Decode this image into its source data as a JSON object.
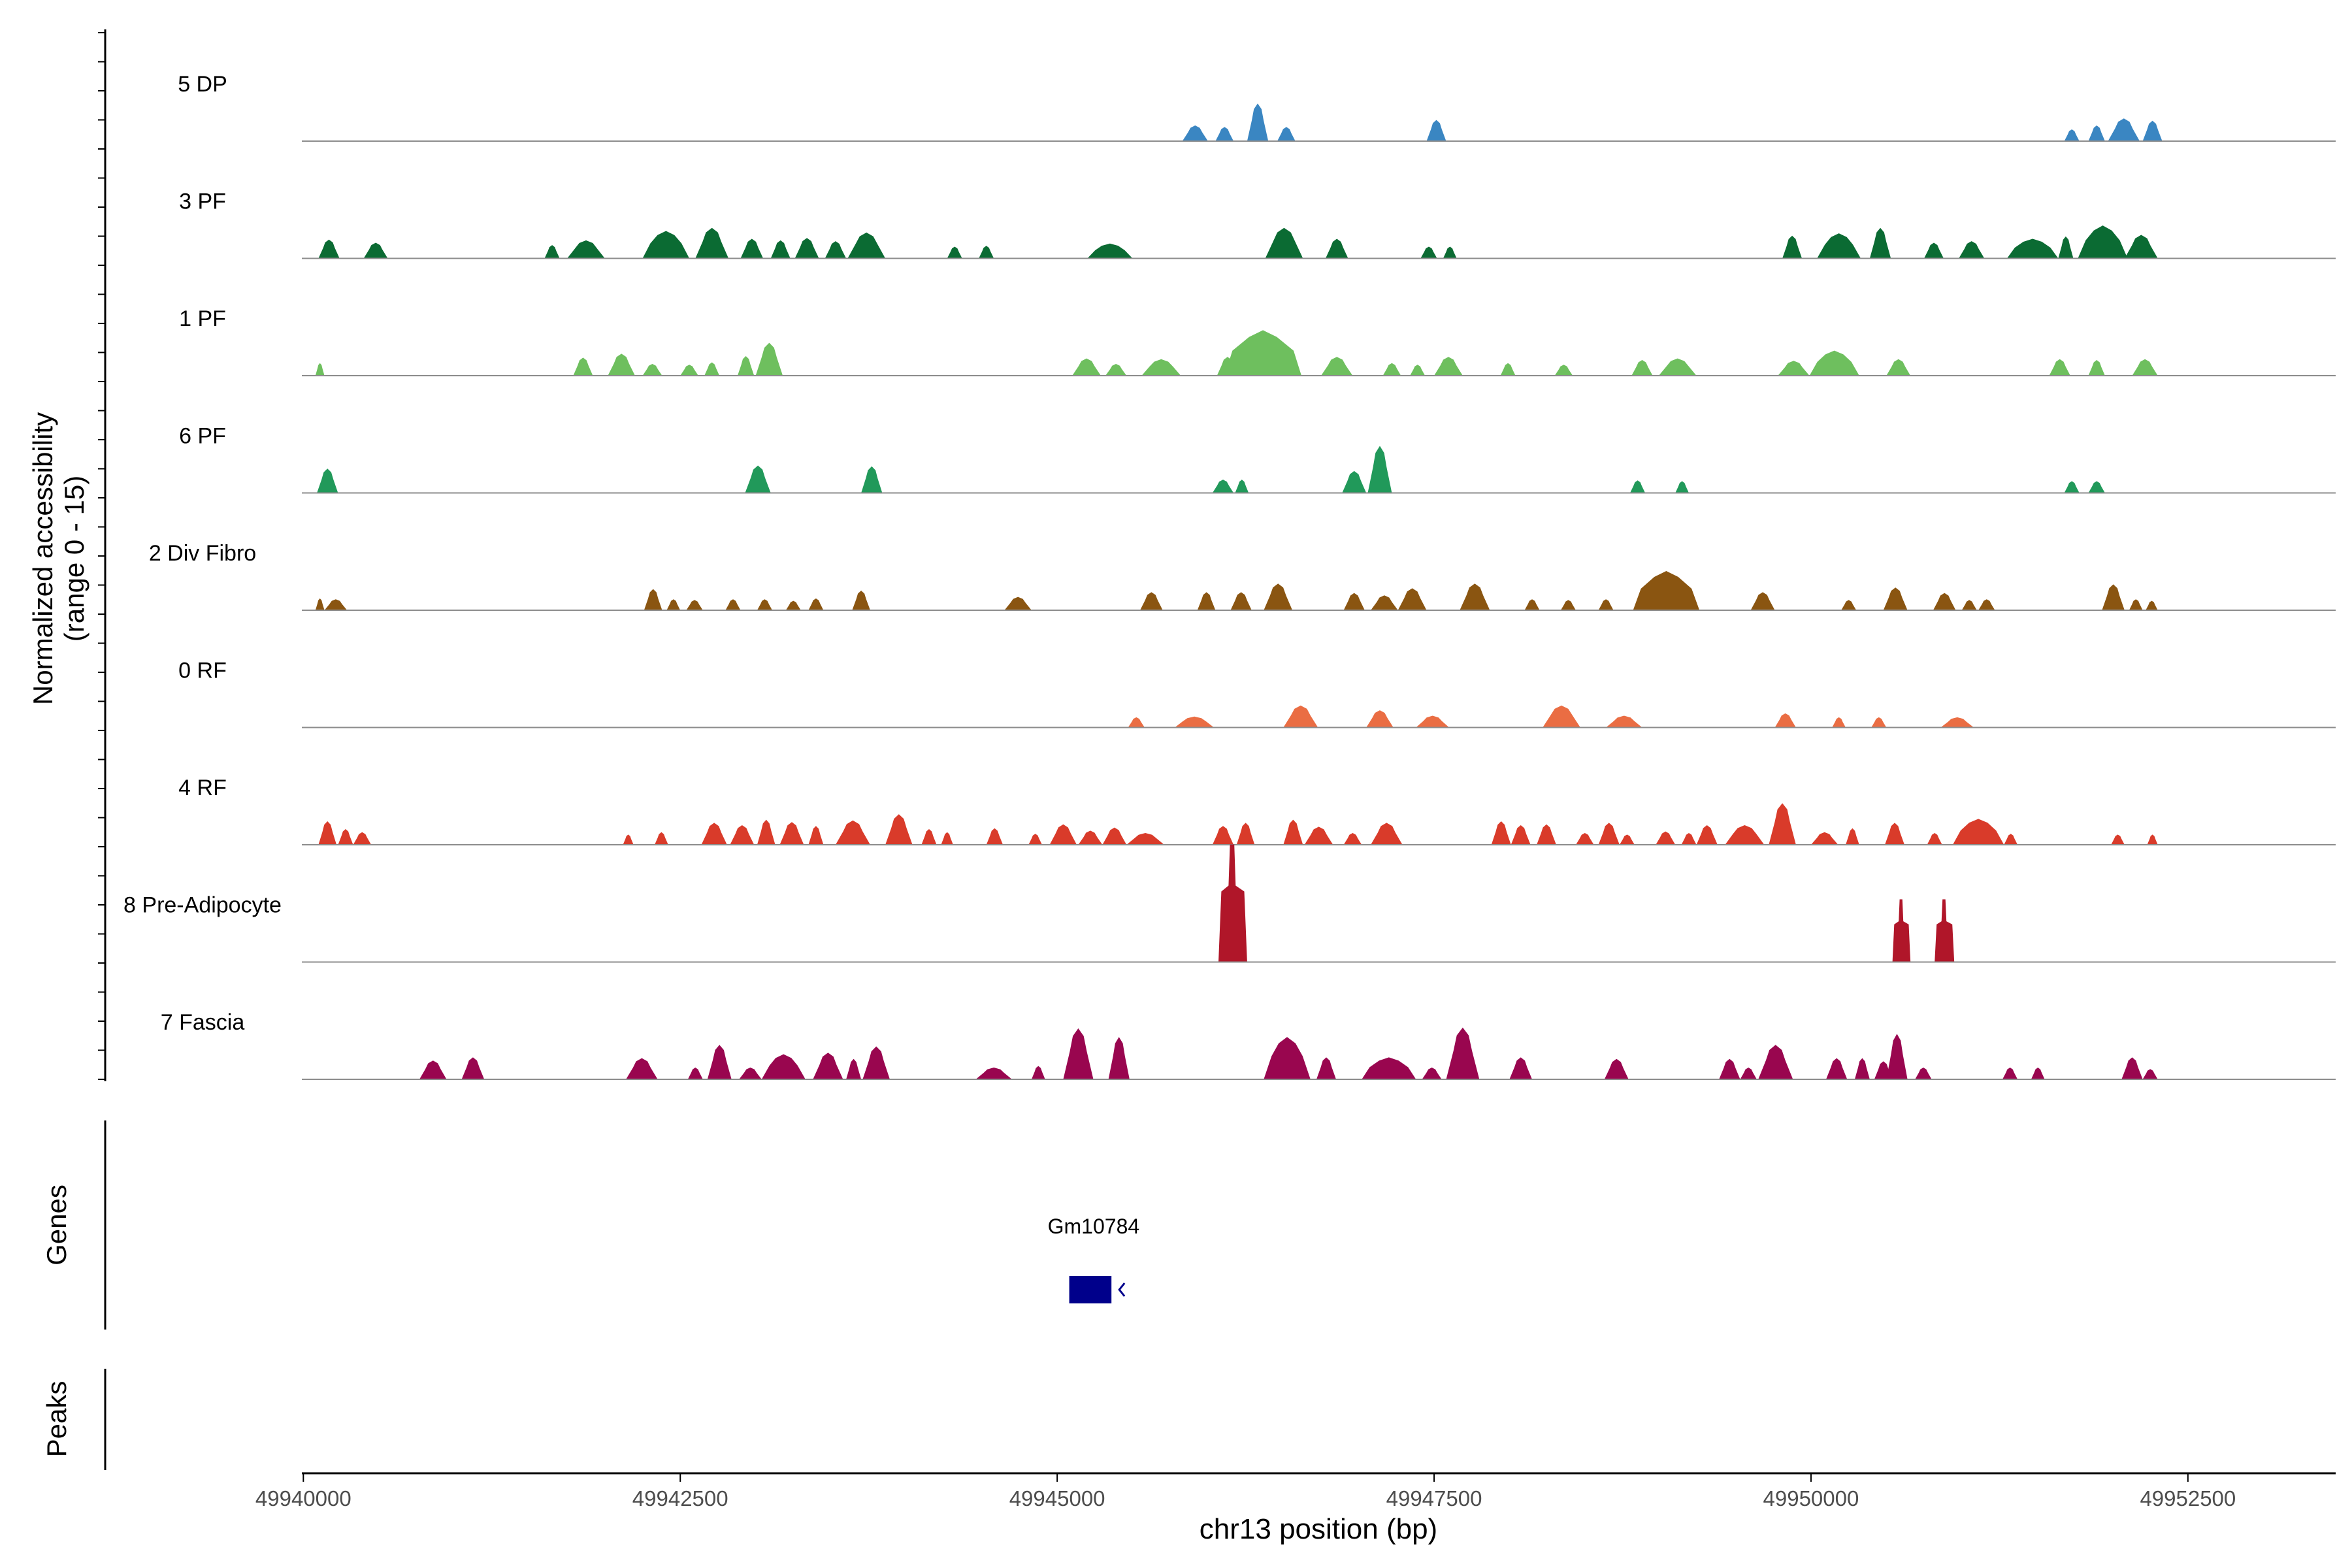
{
  "chart_data": {
    "type": "area",
    "title": "",
    "xlabel": "chr13 position (bp)",
    "ylabel_line1": "Normalized accessibility",
    "ylabel_line2": "(range 0 - 15)",
    "y_range": [
      0,
      15
    ],
    "xlim": [
      49939990,
      49953480
    ],
    "x_ticks": [
      {
        "value": 49940000,
        "label": "49940000"
      },
      {
        "value": 49942500,
        "label": "49942500"
      },
      {
        "value": 49945000,
        "label": "49945000"
      },
      {
        "value": 49947500,
        "label": "49947500"
      },
      {
        "value": 49950000,
        "label": "49950000"
      },
      {
        "value": 49952500,
        "label": "49952500"
      }
    ],
    "series": [
      {
        "name": "5 DP",
        "color": "#3a86c2",
        "peaks": [
          [
            49945830,
            49946000,
            2.0
          ],
          [
            49946050,
            49946170,
            1.8
          ],
          [
            49946260,
            49946400,
            4.8
          ],
          [
            49946460,
            49946580,
            1.8
          ],
          [
            49947450,
            49947580,
            2.7
          ],
          [
            49951680,
            49951780,
            1.5
          ],
          [
            49951840,
            49951950,
            2.0
          ],
          [
            49951970,
            49952180,
            2.9
          ],
          [
            49952200,
            49952330,
            2.6
          ]
        ]
      },
      {
        "name": "3 PF",
        "color": "#0b6b33",
        "peaks": [
          [
            49940100,
            49940240,
            2.4
          ],
          [
            49940400,
            49940560,
            2.0
          ],
          [
            49941600,
            49941700,
            1.7
          ],
          [
            49941750,
            49942000,
            2.3
          ],
          [
            49942250,
            49942560,
            3.5
          ],
          [
            49942600,
            49942820,
            3.9
          ],
          [
            49942900,
            49943050,
            2.5
          ],
          [
            49943100,
            49943230,
            2.3
          ],
          [
            49943260,
            49943420,
            2.6
          ],
          [
            49943460,
            49943600,
            2.2
          ],
          [
            49943610,
            49943860,
            3.3
          ],
          [
            49944270,
            49944370,
            1.5
          ],
          [
            49944480,
            49944580,
            1.6
          ],
          [
            49945200,
            49945500,
            1.9
          ],
          [
            49946380,
            49946630,
            3.9
          ],
          [
            49946780,
            49946930,
            2.5
          ],
          [
            49947410,
            49947520,
            1.5
          ],
          [
            49947560,
            49947650,
            1.5
          ],
          [
            49949810,
            49949940,
            2.9
          ],
          [
            49950040,
            49950330,
            3.2
          ],
          [
            49950390,
            49950530,
            3.9
          ],
          [
            49950750,
            49950880,
            2.0
          ],
          [
            49950980,
            49951150,
            2.2
          ],
          [
            49951300,
            49951640,
            2.5
          ],
          [
            49951640,
            49951740,
            2.8
          ],
          [
            49951770,
            49952100,
            4.2
          ],
          [
            49952080,
            49952300,
            3.0
          ]
        ]
      },
      {
        "name": "1 PF",
        "color": "#6ebf5e",
        "peaks": [
          [
            49940080,
            49940140,
            1.6
          ],
          [
            49941790,
            49941920,
            2.3
          ],
          [
            49942020,
            49942200,
            2.8
          ],
          [
            49942250,
            49942380,
            1.5
          ],
          [
            49942500,
            49942620,
            1.4
          ],
          [
            49942660,
            49942760,
            1.7
          ],
          [
            49942880,
            49942990,
            2.5
          ],
          [
            49943000,
            49943180,
            4.2
          ],
          [
            49945100,
            49945290,
            2.2
          ],
          [
            49945320,
            49945460,
            1.5
          ],
          [
            49945560,
            49945820,
            2.1
          ],
          [
            49946060,
            49946200,
            2.4
          ],
          [
            49946110,
            49946620,
            5.8
          ],
          [
            49946750,
            49946960,
            2.4
          ],
          [
            49947160,
            49947280,
            1.6
          ],
          [
            49947340,
            49947440,
            1.4
          ],
          [
            49947500,
            49947690,
            2.4
          ],
          [
            49947940,
            49948040,
            1.6
          ],
          [
            49948300,
            49948420,
            1.4
          ],
          [
            49948810,
            49948950,
            2.0
          ],
          [
            49948990,
            49949240,
            2.2
          ],
          [
            49949780,
            49949990,
            1.9
          ],
          [
            49949990,
            49950320,
            3.2
          ],
          [
            49950500,
            49950660,
            2.1
          ],
          [
            49951580,
            49951720,
            2.1
          ],
          [
            49951840,
            49951950,
            2.0
          ],
          [
            49952130,
            49952300,
            2.1
          ]
        ]
      },
      {
        "name": "6 PF",
        "color": "#21995a",
        "peaks": [
          [
            49940090,
            49940230,
            3.1
          ],
          [
            49942930,
            49943100,
            3.5
          ],
          [
            49943700,
            49943840,
            3.4
          ],
          [
            49946030,
            49946170,
            1.7
          ],
          [
            49946180,
            49946270,
            1.7
          ],
          [
            49946890,
            49947050,
            2.8
          ],
          [
            49947060,
            49947220,
            6.0
          ],
          [
            49948800,
            49948900,
            1.6
          ],
          [
            49949100,
            49949190,
            1.5
          ],
          [
            49951680,
            49951780,
            1.5
          ],
          [
            49951840,
            49951950,
            1.5
          ]
        ]
      },
      {
        "name": "2 Div Fibro",
        "color": "#8a5511",
        "peaks": [
          [
            49940080,
            49940140,
            1.5
          ],
          [
            49940140,
            49940290,
            1.4
          ],
          [
            49942260,
            49942380,
            2.7
          ],
          [
            49942410,
            49942500,
            1.4
          ],
          [
            49942540,
            49942650,
            1.3
          ],
          [
            49942800,
            49942900,
            1.4
          ],
          [
            49943010,
            49943110,
            1.4
          ],
          [
            49943200,
            49943300,
            1.2
          ],
          [
            49943350,
            49943450,
            1.5
          ],
          [
            49943640,
            49943760,
            2.5
          ],
          [
            49944650,
            49944830,
            1.7
          ],
          [
            49945550,
            49945700,
            2.3
          ],
          [
            49945930,
            49946050,
            2.3
          ],
          [
            49946150,
            49946290,
            2.3
          ],
          [
            49946370,
            49946560,
            3.4
          ],
          [
            49946900,
            49947040,
            2.2
          ],
          [
            49947080,
            49947260,
            1.9
          ],
          [
            49947260,
            49947450,
            2.8
          ],
          [
            49947670,
            49947870,
            3.4
          ],
          [
            49948100,
            49948200,
            1.4
          ],
          [
            49948340,
            49948440,
            1.3
          ],
          [
            49948590,
            49948690,
            1.4
          ],
          [
            49948820,
            49949260,
            5.0
          ],
          [
            49949600,
            49949760,
            2.3
          ],
          [
            49950200,
            49950300,
            1.3
          ],
          [
            49950480,
            49950640,
            2.9
          ],
          [
            49950810,
            49950960,
            2.2
          ],
          [
            49951000,
            49951100,
            1.3
          ],
          [
            49951110,
            49951220,
            1.4
          ],
          [
            49951930,
            49952080,
            3.3
          ],
          [
            49952110,
            49952200,
            1.4
          ],
          [
            49952220,
            49952300,
            1.2
          ]
        ]
      },
      {
        "name": "0 RF",
        "color": "#ea6d43",
        "peaks": [
          [
            49945470,
            49945580,
            1.3
          ],
          [
            49945780,
            49946040,
            1.4
          ],
          [
            49946500,
            49946730,
            2.8
          ],
          [
            49947050,
            49947230,
            2.2
          ],
          [
            49947380,
            49947600,
            1.5
          ],
          [
            49948220,
            49948470,
            2.8
          ],
          [
            49948640,
            49948880,
            1.5
          ],
          [
            49949760,
            49949900,
            1.8
          ],
          [
            49950140,
            49950230,
            1.3
          ],
          [
            49950400,
            49950500,
            1.3
          ],
          [
            49950860,
            49951080,
            1.3
          ]
        ]
      },
      {
        "name": "4 RF",
        "color": "#d93b2a",
        "peaks": [
          [
            49940100,
            49940220,
            3.0
          ],
          [
            49940230,
            49940330,
            2.0
          ],
          [
            49940330,
            49940450,
            1.6
          ],
          [
            49942120,
            49942190,
            1.3
          ],
          [
            49942330,
            49942420,
            1.6
          ],
          [
            49942640,
            49942810,
            2.8
          ],
          [
            49942830,
            49942990,
            2.5
          ],
          [
            49943010,
            49943130,
            3.2
          ],
          [
            49943160,
            49943320,
            2.9
          ],
          [
            49943350,
            49943450,
            2.4
          ],
          [
            49943530,
            49943760,
            3.1
          ],
          [
            49943860,
            49944040,
            3.9
          ],
          [
            49944100,
            49944200,
            2.0
          ],
          [
            49944230,
            49944310,
            1.6
          ],
          [
            49944530,
            49944640,
            2.1
          ],
          [
            49944810,
            49944900,
            1.4
          ],
          [
            49944950,
            49945130,
            2.6
          ],
          [
            49945140,
            49945300,
            1.8
          ],
          [
            49945300,
            49945460,
            2.2
          ],
          [
            49945460,
            49945710,
            1.5
          ],
          [
            49946030,
            49946170,
            2.4
          ],
          [
            49946190,
            49946310,
            2.8
          ],
          [
            49946500,
            49946630,
            3.2
          ],
          [
            49946640,
            49946830,
            2.3
          ],
          [
            49946900,
            49947020,
            1.5
          ],
          [
            49947080,
            49947290,
            2.8
          ],
          [
            49947880,
            49948010,
            3.0
          ],
          [
            49948010,
            49948140,
            2.5
          ],
          [
            49948180,
            49948310,
            2.6
          ],
          [
            49948440,
            49948560,
            1.5
          ],
          [
            49948590,
            49948730,
            2.8
          ],
          [
            49948730,
            49948830,
            1.3
          ],
          [
            49948970,
            49949100,
            1.7
          ],
          [
            49949140,
            49949240,
            1.5
          ],
          [
            49949240,
            49949380,
            2.5
          ],
          [
            49949430,
            49949690,
            2.5
          ],
          [
            49949720,
            49949900,
            5.3
          ],
          [
            49950000,
            49950180,
            1.6
          ],
          [
            49950230,
            49950320,
            2.1
          ],
          [
            49950490,
            49950620,
            2.8
          ],
          [
            49950770,
            49950870,
            1.5
          ],
          [
            49950940,
            49951280,
            3.3
          ],
          [
            49951280,
            49951370,
            1.4
          ],
          [
            49951990,
            49952080,
            1.3
          ],
          [
            49952230,
            49952300,
            1.3
          ]
        ]
      },
      {
        "name": "8 Pre-Adipocyte",
        "color": "#b01629",
        "peaks": [
          [
            49946070,
            49946260,
            15.0
          ],
          [
            49950540,
            49950660,
            8.0
          ],
          [
            49950820,
            49950950,
            8.0
          ]
        ]
      },
      {
        "name": "7 Fascia",
        "color": "#99064f",
        "peaks": [
          [
            49940770,
            49940950,
            2.4
          ],
          [
            49941050,
            49941200,
            2.8
          ],
          [
            49942140,
            49942350,
            2.7
          ],
          [
            49942550,
            49942650,
            1.5
          ],
          [
            49942680,
            49942840,
            4.4
          ],
          [
            49942890,
            49943040,
            1.5
          ],
          [
            49943040,
            49943330,
            3.2
          ],
          [
            49943380,
            49943580,
            3.4
          ],
          [
            49943600,
            49943700,
            2.6
          ],
          [
            49943710,
            49943890,
            4.2
          ],
          [
            49944460,
            49944700,
            1.5
          ],
          [
            49944830,
            49944920,
            1.7
          ],
          [
            49945040,
            49945240,
            6.5
          ],
          [
            49945340,
            49945480,
            5.4
          ],
          [
            49946370,
            49946680,
            5.4
          ],
          [
            49946720,
            49946850,
            2.8
          ],
          [
            49947020,
            49947380,
            2.8
          ],
          [
            49947420,
            49947550,
            1.5
          ],
          [
            49947580,
            49947800,
            6.6
          ],
          [
            49948000,
            49948150,
            2.8
          ],
          [
            49948630,
            49948790,
            2.6
          ],
          [
            49949390,
            49949530,
            2.6
          ],
          [
            49949530,
            49949640,
            1.5
          ],
          [
            49949650,
            49949880,
            4.4
          ],
          [
            49950100,
            49950240,
            2.7
          ],
          [
            49950290,
            49950390,
            2.7
          ],
          [
            49950420,
            49950540,
            2.3
          ],
          [
            49950500,
            49950640,
            5.8
          ],
          [
            49950690,
            49950800,
            1.5
          ],
          [
            49951270,
            49951370,
            1.5
          ],
          [
            49951460,
            49951550,
            1.5
          ],
          [
            49952060,
            49952200,
            2.8
          ],
          [
            49952200,
            49952300,
            1.3
          ]
        ]
      }
    ],
    "genes": [
      {
        "name": "Gm10784",
        "start": 49945080,
        "end": 49945360,
        "strand": "-",
        "color": "#00008b"
      }
    ],
    "genes_panel_title": "Genes",
    "peaks_panel_title": "Peaks"
  }
}
